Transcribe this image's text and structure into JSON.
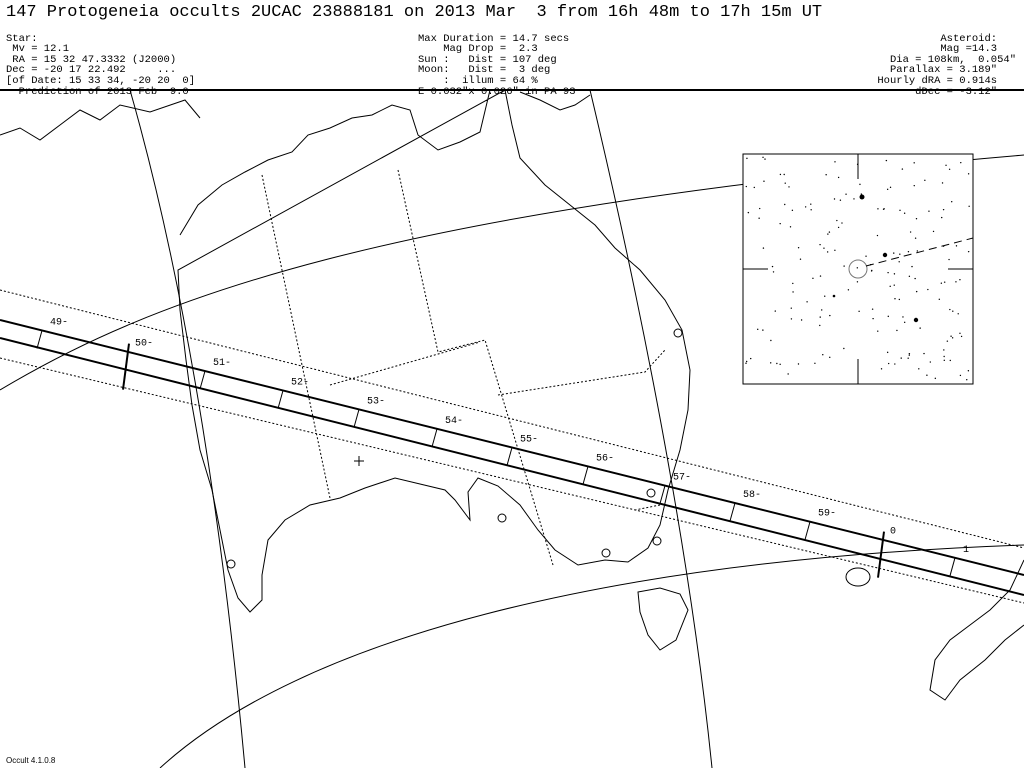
{
  "title": "147 Protogeneia occults 2UCAC 23888181 on 2013 Mar  3 from 16h 48m to 17h 15m UT",
  "star": [
    "Star:",
    " Mv = 12.1",
    " RA = 15 32 47.3332 (J2000)",
    "Dec = -20 17 22.492     ...",
    "[of Date: 15 33 34, -20 20  0]",
    "  Prediction of 2013 Feb  9.0"
  ],
  "event": [
    "Max Duration = 14.7 secs",
    "    Mag Drop =  2.3",
    "Sun :   Dist = 107 deg",
    "Moon:   Dist =  3 deg",
    "    :  illum = 64 %",
    "E 0.032\"x 0.026\" in PA 93"
  ],
  "asteroid": [
    "Asteroid:   ",
    "Mag =14.3   ",
    "Dia = 108km,  0.054\"",
    "Parallax = 3.189\"   ",
    "Hourly dRA = 0.914s   ",
    "dDec = -3.12\"   "
  ],
  "time_labels": [
    "49",
    "50",
    "51",
    "52",
    "53",
    "54",
    "55",
    "56",
    "57",
    "58",
    "59",
    "0",
    "1"
  ],
  "version": "Occult 4.1.0.8"
}
